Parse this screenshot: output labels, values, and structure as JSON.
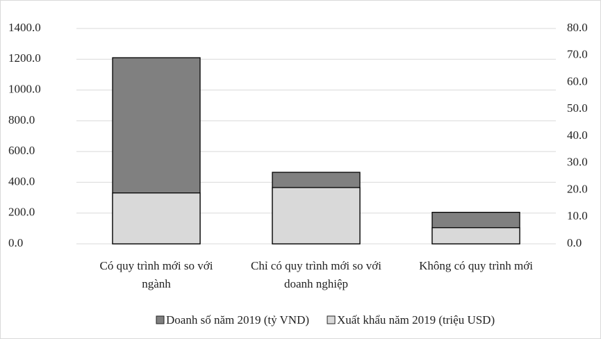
{
  "chart_data": {
    "type": "bar",
    "categories": [
      "Có quy trình mới so với ngành",
      "Chỉ có quy trình mới so với doanh nghiệp",
      "Không có quy trình mới"
    ],
    "series": [
      {
        "name": "Doanh số năm 2019 (tỷ VND)",
        "color": "#808080",
        "values": [
          1210,
          465,
          205
        ]
      },
      {
        "name": "Xuất khẩu năm 2019 (triệu USD)",
        "color": "#d9d9d9",
        "axis": "y2",
        "values": [
          18.9,
          20.9,
          6.0
        ]
      }
    ],
    "ylim": [
      0,
      1400
    ],
    "yticks": [
      {
        "value": 0,
        "label": "0.0"
      },
      {
        "value": 200,
        "label": "200.0"
      },
      {
        "value": 400,
        "label": "400.0"
      },
      {
        "value": 600,
        "label": "600.0"
      },
      {
        "value": 800,
        "label": "800.0"
      },
      {
        "value": 1000,
        "label": "1000.0"
      },
      {
        "value": 1200,
        "label": "1200.0"
      },
      {
        "value": 1400,
        "label": "1400.0"
      }
    ],
    "y2lim": [
      0,
      80
    ],
    "y2ticks": [
      {
        "value": 0,
        "label": "0.0"
      },
      {
        "value": 10,
        "label": "10.0"
      },
      {
        "value": 20,
        "label": "20.0"
      },
      {
        "value": 30,
        "label": "30.0"
      },
      {
        "value": 40,
        "label": "40.0"
      },
      {
        "value": 50,
        "label": "50.0"
      },
      {
        "value": 60,
        "label": "60.0"
      },
      {
        "value": 70,
        "label": "70.0"
      },
      {
        "value": 80,
        "label": "80.0"
      }
    ],
    "grid": true,
    "legend": "bottom"
  }
}
